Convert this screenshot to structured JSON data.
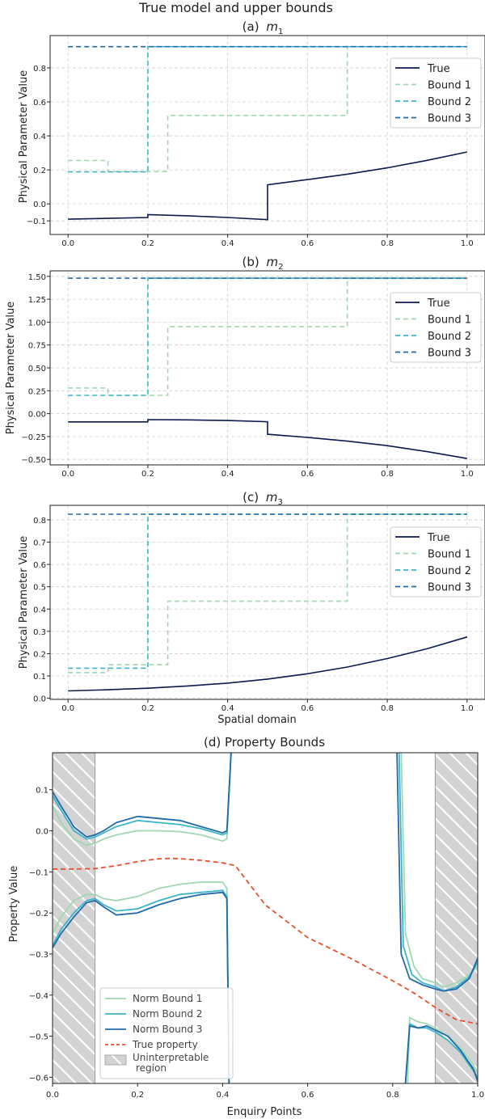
{
  "figure": {
    "suptitle": "True model and upper bounds",
    "xlabel_bottom": "Spatial domain"
  },
  "colors": {
    "true": "#0b1a4f",
    "bound1": "#9fd8b0",
    "bound2": "#3cb4c8",
    "bound3": "#2269a8",
    "true_property": "#e8502c",
    "grid": "#cfcfcf",
    "hatch_fill": "#d3d3d3"
  },
  "chart_data": [
    {
      "type": "line",
      "title": "(a) m₁",
      "title_prefix": "(a)",
      "title_var": "m",
      "title_sub": "1",
      "ylabel": "Physical Parameter Value",
      "xlim": [
        -0.045,
        1.045
      ],
      "ylim": [
        -0.18,
        0.99
      ],
      "xticks": [
        0.0,
        0.2,
        0.4,
        0.6,
        0.8,
        1.0
      ],
      "xtick_labels": [
        "0.0",
        "0.2",
        "0.4",
        "0.6",
        "0.8",
        "1.0"
      ],
      "yticks": [
        -0.1,
        0.0,
        0.2,
        0.4,
        0.6,
        0.8
      ],
      "ytick_labels": [
        "−0.1",
        "0.0",
        "0.2",
        "0.4",
        "0.6",
        "0.8"
      ],
      "grid": true,
      "legend_position": "right",
      "series": [
        {
          "name": "True",
          "style": "solid",
          "x": [
            0,
            0.2,
            0.2,
            0.3,
            0.4,
            0.5,
            0.5,
            0.6,
            0.7,
            0.8,
            0.9,
            1.0
          ],
          "y": [
            -0.09,
            -0.08,
            -0.063,
            -0.07,
            -0.08,
            -0.093,
            0.112,
            0.143,
            0.175,
            0.212,
            0.256,
            0.305
          ]
        },
        {
          "name": "Bound 1",
          "style": "dashed",
          "x": [
            0,
            0.1,
            0.1,
            0.25,
            0.25,
            0.7,
            0.7,
            1.0
          ],
          "y": [
            0.255,
            0.255,
            0.19,
            0.19,
            0.52,
            0.52,
            0.925,
            0.925
          ]
        },
        {
          "name": "Bound 2",
          "style": "dashed",
          "x": [
            0,
            0.2,
            0.2,
            1.0
          ],
          "y": [
            0.188,
            0.188,
            0.925,
            0.925
          ]
        },
        {
          "name": "Bound 3",
          "style": "dashed",
          "x": [
            0,
            1.0
          ],
          "y": [
            0.925,
            0.925
          ]
        }
      ]
    },
    {
      "type": "line",
      "title": "(b) m₂",
      "title_prefix": "(b)",
      "title_var": "m",
      "title_sub": "2",
      "ylabel": "Physical Parameter Value",
      "xlim": [
        -0.045,
        1.045
      ],
      "ylim": [
        -0.56,
        1.56
      ],
      "xticks": [
        0.0,
        0.2,
        0.4,
        0.6,
        0.8,
        1.0
      ],
      "xtick_labels": [
        "0.0",
        "0.2",
        "0.4",
        "0.6",
        "0.8",
        "1.0"
      ],
      "yticks": [
        -0.5,
        -0.25,
        0.0,
        0.25,
        0.5,
        0.75,
        1.0,
        1.25,
        1.5
      ],
      "ytick_labels": [
        "−0.50",
        "−0.25",
        "0.00",
        "0.25",
        "0.50",
        "0.75",
        "1.00",
        "1.25",
        "1.50"
      ],
      "grid": true,
      "legend_position": "right",
      "series": [
        {
          "name": "True",
          "style": "solid",
          "x": [
            0,
            0.2,
            0.2,
            0.3,
            0.4,
            0.5,
            0.5,
            0.6,
            0.7,
            0.8,
            0.9,
            1.0
          ],
          "y": [
            -0.09,
            -0.09,
            -0.065,
            -0.068,
            -0.075,
            -0.088,
            -0.225,
            -0.26,
            -0.3,
            -0.35,
            -0.415,
            -0.49
          ]
        },
        {
          "name": "Bound 1",
          "style": "dashed",
          "x": [
            0,
            0.1,
            0.1,
            0.25,
            0.25,
            0.7,
            0.7,
            1.0
          ],
          "y": [
            0.28,
            0.28,
            0.2,
            0.2,
            0.95,
            0.95,
            1.48,
            1.48
          ]
        },
        {
          "name": "Bound 2",
          "style": "dashed",
          "x": [
            0,
            0.2,
            0.2,
            1.0
          ],
          "y": [
            0.2,
            0.2,
            1.48,
            1.48
          ]
        },
        {
          "name": "Bound 3",
          "style": "dashed",
          "x": [
            0,
            1.0
          ],
          "y": [
            1.48,
            1.48
          ]
        }
      ]
    },
    {
      "type": "line",
      "title": "(c) m₃",
      "title_prefix": "(c)",
      "title_var": "m",
      "title_sub": "3",
      "ylabel": "Physical Parameter Value",
      "xlabel": "Spatial domain",
      "xlim": [
        -0.045,
        1.045
      ],
      "ylim": [
        -0.005,
        0.865
      ],
      "xticks": [
        0.0,
        0.2,
        0.4,
        0.6,
        0.8,
        1.0
      ],
      "xtick_labels": [
        "0.0",
        "0.2",
        "0.4",
        "0.6",
        "0.8",
        "1.0"
      ],
      "yticks": [
        0.0,
        0.1,
        0.2,
        0.3,
        0.4,
        0.5,
        0.6,
        0.7,
        0.8
      ],
      "ytick_labels": [
        "0.0",
        "0.1",
        "0.2",
        "0.3",
        "0.4",
        "0.5",
        "0.6",
        "0.7",
        "0.8"
      ],
      "grid": true,
      "legend_position": "right",
      "series": [
        {
          "name": "True",
          "style": "solid",
          "x": [
            0,
            0.1,
            0.2,
            0.3,
            0.4,
            0.5,
            0.6,
            0.7,
            0.8,
            0.9,
            1.0
          ],
          "y": [
            0.033,
            0.038,
            0.045,
            0.055,
            0.068,
            0.086,
            0.11,
            0.14,
            0.178,
            0.222,
            0.275
          ]
        },
        {
          "name": "Bound 1",
          "style": "dashed",
          "x": [
            0,
            0.1,
            0.1,
            0.25,
            0.25,
            0.7,
            0.7,
            1.0
          ],
          "y": [
            0.115,
            0.115,
            0.15,
            0.15,
            0.435,
            0.435,
            0.825,
            0.825
          ]
        },
        {
          "name": "Bound 2",
          "style": "dashed",
          "x": [
            0,
            0.2,
            0.2,
            1.0
          ],
          "y": [
            0.135,
            0.135,
            0.825,
            0.825
          ]
        },
        {
          "name": "Bound 3",
          "style": "dashed",
          "x": [
            0,
            1.0
          ],
          "y": [
            0.825,
            0.825
          ]
        }
      ]
    },
    {
      "type": "line",
      "title": "(d) Property Bounds",
      "xlabel": "Enquiry Points",
      "ylabel": "Property Value",
      "xlim": [
        0.0,
        1.0
      ],
      "ylim": [
        -0.615,
        0.19
      ],
      "xticks": [
        0.0,
        0.2,
        0.4,
        0.6,
        0.8,
        1.0
      ],
      "xtick_labels": [
        "0.0",
        "0.2",
        "0.4",
        "0.6",
        "0.8",
        "1.0"
      ],
      "yticks": [
        -0.6,
        -0.5,
        -0.4,
        -0.3,
        -0.2,
        -0.1,
        0.0,
        0.1
      ],
      "ytick_labels": [
        "−0.6",
        "−0.5",
        "−0.4",
        "−0.3",
        "−0.2",
        "−0.1",
        "0.0",
        "0.1"
      ],
      "grid": false,
      "legend_position": "lower left",
      "hatched_regions": [
        [
          0.0,
          0.1
        ],
        [
          0.9,
          1.0
        ]
      ],
      "hatched_label": "Uninterpretable region",
      "series": [
        {
          "name": "Norm Bound 1",
          "style": "solid",
          "x": [
            0.0,
            0.02,
            0.05,
            0.08,
            0.1,
            0.12,
            0.15,
            0.2,
            0.25,
            0.3,
            0.35,
            0.4,
            0.41,
            0.42
          ],
          "y": [
            0.06,
            0.02,
            -0.02,
            -0.035,
            -0.03,
            -0.02,
            -0.01,
            0.0,
            0.0,
            -0.002,
            -0.01,
            -0.025,
            -0.02,
            0.19
          ]
        },
        {
          "name": "Norm Bound 1",
          "style": "solid",
          "x": [
            0.0,
            0.02,
            0.05,
            0.08,
            0.1,
            0.12,
            0.15,
            0.2,
            0.25,
            0.3,
            0.35,
            0.4,
            0.41,
            0.415
          ],
          "y": [
            -0.25,
            -0.21,
            -0.17,
            -0.155,
            -0.155,
            -0.165,
            -0.17,
            -0.16,
            -0.14,
            -0.13,
            -0.125,
            -0.125,
            -0.14,
            -0.615
          ]
        },
        {
          "name": "Norm Bound 1",
          "style": "solid",
          "x": [
            0.82,
            0.83,
            0.85,
            0.87,
            0.9,
            0.92,
            0.95,
            0.98,
            1.0
          ],
          "y": [
            0.19,
            -0.25,
            -0.33,
            -0.36,
            -0.37,
            -0.38,
            -0.37,
            -0.35,
            -0.33
          ]
        },
        {
          "name": "Norm Bound 1",
          "style": "solid",
          "x": [
            0.835,
            0.84,
            0.86,
            0.88,
            0.9,
            0.93,
            0.96,
            0.99,
            1.0
          ],
          "y": [
            -0.615,
            -0.455,
            -0.465,
            -0.47,
            -0.48,
            -0.5,
            -0.53,
            -0.57,
            -0.59
          ]
        },
        {
          "name": "Norm Bound 2",
          "style": "solid",
          "x": [
            0.0,
            0.02,
            0.05,
            0.08,
            0.1,
            0.12,
            0.15,
            0.2,
            0.25,
            0.3,
            0.35,
            0.4,
            0.41,
            0.42
          ],
          "y": [
            0.085,
            0.05,
            0.0,
            -0.02,
            -0.015,
            -0.005,
            0.01,
            0.025,
            0.02,
            0.015,
            0.005,
            -0.01,
            -0.005,
            0.19
          ]
        },
        {
          "name": "Norm Bound 2",
          "style": "solid",
          "x": [
            0.0,
            0.02,
            0.05,
            0.08,
            0.1,
            0.12,
            0.15,
            0.2,
            0.25,
            0.3,
            0.35,
            0.4,
            0.41,
            0.415
          ],
          "y": [
            -0.28,
            -0.24,
            -0.2,
            -0.17,
            -0.165,
            -0.18,
            -0.195,
            -0.19,
            -0.17,
            -0.155,
            -0.15,
            -0.145,
            -0.16,
            -0.615
          ]
        },
        {
          "name": "Norm Bound 2",
          "style": "solid",
          "x": [
            0.815,
            0.825,
            0.845,
            0.87,
            0.9,
            0.92,
            0.95,
            0.98,
            1.0
          ],
          "y": [
            0.19,
            -0.28,
            -0.35,
            -0.37,
            -0.38,
            -0.39,
            -0.38,
            -0.355,
            -0.32
          ]
        },
        {
          "name": "Norm Bound 2",
          "style": "solid",
          "x": [
            0.83,
            0.84,
            0.86,
            0.88,
            0.9,
            0.93,
            0.96,
            0.99,
            1.0
          ],
          "y": [
            -0.615,
            -0.47,
            -0.48,
            -0.48,
            -0.49,
            -0.51,
            -0.54,
            -0.585,
            -0.6
          ]
        },
        {
          "name": "Norm Bound 3",
          "style": "solid",
          "x": [
            0.0,
            0.02,
            0.05,
            0.08,
            0.1,
            0.12,
            0.15,
            0.2,
            0.25,
            0.3,
            0.35,
            0.4,
            0.41,
            0.42
          ],
          "y": [
            0.095,
            0.06,
            0.01,
            -0.015,
            -0.01,
            0.0,
            0.02,
            0.035,
            0.03,
            0.025,
            0.01,
            -0.005,
            0.0,
            0.19
          ]
        },
        {
          "name": "Norm Bound 3",
          "style": "solid",
          "x": [
            0.0,
            0.02,
            0.05,
            0.08,
            0.1,
            0.12,
            0.15,
            0.2,
            0.25,
            0.3,
            0.35,
            0.4,
            0.41,
            0.415
          ],
          "y": [
            -0.285,
            -0.25,
            -0.21,
            -0.175,
            -0.17,
            -0.185,
            -0.205,
            -0.2,
            -0.18,
            -0.165,
            -0.155,
            -0.15,
            -0.165,
            -0.615
          ]
        },
        {
          "name": "Norm Bound 3",
          "style": "solid",
          "x": [
            0.81,
            0.82,
            0.84,
            0.87,
            0.9,
            0.92,
            0.95,
            0.98,
            1.0
          ],
          "y": [
            0.19,
            -0.3,
            -0.36,
            -0.375,
            -0.385,
            -0.39,
            -0.385,
            -0.36,
            -0.31
          ]
        },
        {
          "name": "Norm Bound 3",
          "style": "solid",
          "x": [
            0.83,
            0.84,
            0.86,
            0.88,
            0.9,
            0.93,
            0.96,
            0.99,
            1.0
          ],
          "y": [
            -0.615,
            -0.475,
            -0.48,
            -0.475,
            -0.485,
            -0.5,
            -0.535,
            -0.58,
            -0.61
          ]
        },
        {
          "name": "True property",
          "style": "dashed",
          "x": [
            0.0,
            0.05,
            0.1,
            0.15,
            0.2,
            0.25,
            0.28,
            0.3,
            0.35,
            0.4,
            0.43,
            0.5,
            0.55,
            0.6,
            0.7,
            0.8,
            0.85,
            0.9,
            0.95,
            1.0
          ],
          "y": [
            -0.093,
            -0.093,
            -0.092,
            -0.085,
            -0.075,
            -0.068,
            -0.067,
            -0.068,
            -0.072,
            -0.078,
            -0.085,
            -0.18,
            -0.22,
            -0.26,
            -0.31,
            -0.365,
            -0.395,
            -0.43,
            -0.46,
            -0.47
          ]
        }
      ],
      "legend": [
        "Norm Bound 1",
        "Norm Bound 2",
        "Norm Bound 3",
        "True property",
        "Uninterpretable region"
      ]
    }
  ]
}
